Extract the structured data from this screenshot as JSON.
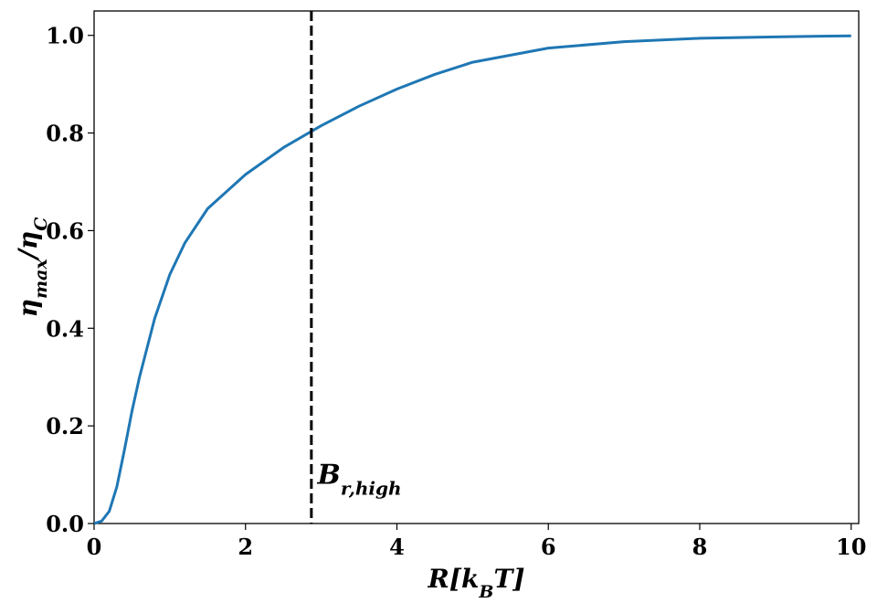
{
  "chart_data": {
    "type": "line",
    "xlabel": [
      {
        "text": "R[k"
      },
      {
        "text": "B",
        "sub": true
      },
      {
        "text": "T]"
      }
    ],
    "ylabel": [
      {
        "text": "η"
      },
      {
        "text": "max",
        "sub": true
      },
      {
        "text": "/η"
      },
      {
        "text": "C",
        "sub": true
      }
    ],
    "x": [
      0,
      0.1,
      0.2,
      0.3,
      0.4,
      0.5,
      0.6,
      0.8,
      1.0,
      1.2,
      1.5,
      2,
      2.5,
      3,
      3.5,
      4,
      4.5,
      5,
      6,
      7,
      8,
      9,
      10
    ],
    "series": [
      {
        "color": "#1f77b4",
        "values": [
          0,
          0.005,
          0.025,
          0.075,
          0.15,
          0.23,
          0.3,
          0.42,
          0.51,
          0.575,
          0.645,
          0.715,
          0.77,
          0.815,
          0.855,
          0.89,
          0.92,
          0.945,
          0.974,
          0.987,
          0.994,
          0.997,
          0.999
        ]
      }
    ],
    "vline": {
      "x": 2.87,
      "color": "#000000",
      "dashed": true
    },
    "annotation": {
      "text": "B",
      "subscript": "r,high",
      "x": 2.95,
      "y": 0.1
    },
    "xlim": [
      0,
      10.1
    ],
    "xticks": [
      0,
      2,
      4,
      6,
      8,
      10
    ],
    "ylim": [
      0,
      1.05
    ],
    "yticks": [
      {
        "value": 0,
        "label": "0.0"
      },
      0.2,
      0.4,
      0.6,
      0.8,
      {
        "value": 1,
        "label": "1.0"
      }
    ]
  }
}
